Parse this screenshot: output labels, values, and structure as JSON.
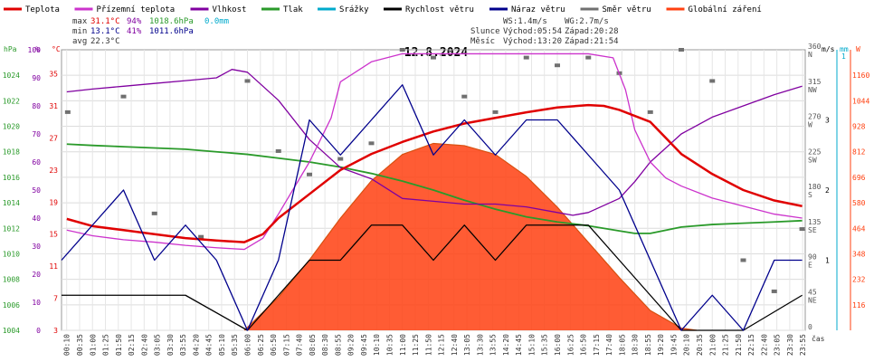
{
  "legend": [
    {
      "label": "Teplota",
      "color": "#e00000"
    },
    {
      "label": "Přízemní teplota",
      "color": "#cc33cc"
    },
    {
      "label": "Vlhkost",
      "color": "#8000a0"
    },
    {
      "label": "Tlak",
      "color": "#2a9a2a"
    },
    {
      "label": "Srážky",
      "color": "#00aacc"
    },
    {
      "label": "Rychlost větru",
      "color": "#000000"
    },
    {
      "label": "Náraz větru",
      "color": "#00008c"
    },
    {
      "label": "Směr větru",
      "color": "#707070"
    },
    {
      "label": "Globální záření",
      "color": "#ff4010"
    }
  ],
  "stats": {
    "max_label": "max",
    "max_temp": "31.1°C",
    "max_hum": "94%",
    "max_press": "1018.6hPa",
    "max_rain": "0.0mm",
    "min_label": "min",
    "min_temp": "13.1°C",
    "min_hum": "41%",
    "min_press": "1011.6hPa",
    "avg_label": "avg",
    "avg_temp": "22.3°C"
  },
  "sun": {
    "ws": "WS:1.4m/s",
    "wg": "WG:2.7m/s",
    "sun_label": "Slunce",
    "sunrise": "Východ:05:54",
    "sunset": "Západ:20:28",
    "moon_label": "Měsíc",
    "moonrise": "Východ:13:20",
    "moonset": "Západ:21:54"
  },
  "title": "12.8.2024",
  "axis_units": {
    "hpa": "hPa",
    "pct": "%",
    "degc": "°C",
    "ms": "m/s",
    "mm": "mm",
    "w": "W",
    "time": "čas"
  },
  "chart_data": {
    "type": "line",
    "title": "12.8.2024",
    "x_ticks": [
      "00:10",
      "00:35",
      "01:00",
      "01:25",
      "01:50",
      "02:15",
      "02:40",
      "03:05",
      "03:30",
      "03:55",
      "04:20",
      "04:45",
      "05:10",
      "05:35",
      "06:00",
      "06:25",
      "06:50",
      "07:15",
      "07:40",
      "08:05",
      "08:30",
      "08:55",
      "09:20",
      "09:45",
      "10:10",
      "10:35",
      "11:00",
      "11:25",
      "11:50",
      "12:15",
      "12:40",
      "13:05",
      "13:30",
      "13:55",
      "14:20",
      "14:45",
      "15:10",
      "15:35",
      "16:00",
      "16:25",
      "16:50",
      "17:15",
      "17:40",
      "18:05",
      "18:30",
      "18:55",
      "19:20",
      "19:45",
      "20:10",
      "20:35",
      "21:00",
      "21:25",
      "21:50",
      "22:15",
      "22:40",
      "23:05",
      "23:30",
      "23:55"
    ],
    "y_axes": {
      "pressure_hpa": {
        "ticks": [
          1004,
          1006,
          1008,
          1010,
          1012,
          1014,
          1016,
          1018,
          1020,
          1022,
          1024
        ],
        "range": [
          1004,
          1026
        ]
      },
      "humidity_pct": {
        "ticks": [
          0,
          10,
          20,
          30,
          40,
          50,
          60,
          70,
          80,
          90,
          100
        ],
        "range": [
          0,
          100
        ]
      },
      "temperature_c": {
        "ticks": [
          3,
          7,
          11,
          15,
          19,
          23,
          27,
          31,
          35
        ],
        "range": [
          3,
          38
        ]
      },
      "wind_dir": {
        "ticks": [
          [
            "0",
            ""
          ],
          [
            "45",
            "NE"
          ],
          [
            "90",
            "E"
          ],
          [
            "135",
            "SE"
          ],
          [
            "180",
            "S"
          ],
          [
            "225",
            "SW"
          ],
          [
            "270",
            "W"
          ],
          [
            "315",
            "NW"
          ],
          [
            "360",
            "N"
          ]
        ],
        "range": [
          0,
          360
        ]
      },
      "wind_ms": {
        "ticks": [
          "1",
          "2",
          "3"
        ],
        "range": [
          0,
          4
        ]
      },
      "rain_mm": {
        "ticks": [
          "1"
        ],
        "range": [
          0,
          1
        ]
      },
      "radiation_w": {
        "ticks": [
          116,
          232,
          348,
          464,
          580,
          696,
          812,
          928,
          1044,
          1160
        ],
        "range": [
          0,
          1276
        ]
      }
    },
    "series": [
      {
        "name": "Teplota",
        "color": "#e00000",
        "axis": "temperature_c",
        "x": [
          0.17,
          1,
          2,
          3,
          4,
          5,
          5.9,
          6.5,
          7,
          8,
          9,
          10,
          11,
          12,
          13,
          14,
          15,
          16,
          17,
          17.5,
          18,
          19,
          19.5,
          20,
          21,
          22,
          23,
          23.9
        ],
        "y": [
          16.9,
          16,
          15.5,
          15,
          14.5,
          14.2,
          14.0,
          15,
          17,
          20,
          23,
          25,
          26.5,
          27.8,
          28.8,
          29.5,
          30.2,
          30.8,
          31.1,
          31,
          30.5,
          29,
          27,
          25,
          22.5,
          20.5,
          19.2,
          18.5
        ]
      },
      {
        "name": "Přízemní teplota",
        "color": "#cc33cc",
        "axis": "temperature_c",
        "x": [
          0.17,
          1,
          2,
          3,
          4,
          5,
          5.9,
          6.5,
          7,
          8,
          8.7,
          9,
          10,
          11,
          12,
          13,
          14,
          15,
          16,
          17,
          17.8,
          18.2,
          18.5,
          19,
          19.5,
          20,
          21,
          22,
          23,
          23.9
        ],
        "y": [
          15.5,
          14.8,
          14.3,
          14,
          13.6,
          13.3,
          13.1,
          14.5,
          17.5,
          24,
          29.5,
          34,
          36.5,
          37.5,
          37.5,
          37.5,
          37.5,
          37.5,
          37.5,
          37.5,
          37,
          33,
          28,
          24,
          22,
          21,
          19.5,
          18.5,
          17.5,
          17
        ]
      },
      {
        "name": "Vlhkost",
        "color": "#8000a0",
        "axis": "humidity_pct",
        "x": [
          0.17,
          1,
          2,
          3,
          4,
          5,
          5.5,
          6,
          7,
          8,
          9,
          10,
          11,
          12,
          13,
          14,
          15,
          16,
          16.5,
          17,
          18,
          18.5,
          19,
          20,
          21,
          22,
          23,
          23.9
        ],
        "y": [
          85,
          86,
          87,
          88,
          89,
          90,
          93,
          92,
          82,
          68,
          58,
          54,
          47,
          46,
          45,
          45,
          44,
          42,
          41,
          42,
          47,
          53,
          60,
          70,
          76,
          80,
          84,
          87
        ]
      },
      {
        "name": "Tlak",
        "color": "#2a9a2a",
        "axis": "pressure_hpa",
        "x": [
          0.17,
          1,
          2,
          3,
          4,
          5,
          6,
          7,
          8,
          9,
          10,
          11,
          12,
          13,
          14,
          15,
          16,
          17,
          18,
          18.5,
          19,
          20,
          21,
          22,
          23,
          23.9
        ],
        "y": [
          1018.6,
          1018.5,
          1018.4,
          1018.3,
          1018.2,
          1018.0,
          1017.8,
          1017.5,
          1017.2,
          1016.8,
          1016.3,
          1015.7,
          1015.0,
          1014.2,
          1013.5,
          1012.9,
          1012.5,
          1012.2,
          1011.8,
          1011.6,
          1011.6,
          1012.1,
          1012.3,
          1012.4,
          1012.5,
          1012.6
        ]
      },
      {
        "name": "Globální záření",
        "color": "#ff4010",
        "axis": "radiation_w",
        "x": [
          5.9,
          7,
          8,
          9,
          10,
          11,
          12,
          13,
          14,
          15,
          16,
          17,
          18,
          19,
          20,
          20.5
        ],
        "y": [
          0,
          150,
          320,
          510,
          680,
          800,
          850,
          840,
          800,
          700,
          560,
          400,
          240,
          90,
          10,
          0
        ]
      },
      {
        "name": "Náraz větru",
        "color": "#00008c",
        "axis": "wind_ms",
        "x": [
          0,
          1,
          2,
          3,
          4,
          5,
          6,
          7,
          7.5,
          8,
          9,
          10,
          11,
          12,
          13,
          14,
          15,
          16,
          17,
          18,
          19,
          20,
          21,
          22,
          23,
          23.9
        ],
        "y": [
          1,
          1.5,
          2,
          1,
          1.5,
          1,
          0,
          1,
          2,
          3,
          2.5,
          3,
          3.5,
          2.5,
          3,
          2.5,
          3,
          3,
          2.5,
          2,
          1,
          0,
          0.5,
          0,
          1,
          1
        ]
      },
      {
        "name": "Rychlost větru",
        "color": "#000000",
        "axis": "wind_ms",
        "x": [
          0,
          2,
          4,
          6,
          7,
          8,
          9,
          10,
          11,
          12,
          13,
          14,
          15,
          16,
          17,
          18,
          19,
          20,
          22,
          23.9
        ],
        "y": [
          0.5,
          0.5,
          0.5,
          0,
          0.5,
          1,
          1,
          1.5,
          1.5,
          1,
          1.5,
          1,
          1.5,
          1.5,
          1.5,
          1,
          0.5,
          0,
          0,
          0.5
        ]
      },
      {
        "name": "Směr větru",
        "color": "#707070",
        "axis": "wind_dir",
        "x": [
          0.2,
          2,
          3,
          4.5,
          6,
          7,
          8,
          9,
          10,
          11,
          12,
          13,
          14,
          15,
          16,
          17,
          18,
          19,
          20,
          21,
          22,
          23,
          23.9
        ],
        "y": [
          280,
          300,
          150,
          120,
          320,
          230,
          200,
          220,
          240,
          360,
          350,
          300,
          280,
          350,
          340,
          350,
          330,
          280,
          360,
          320,
          90,
          50,
          130
        ]
      }
    ]
  }
}
